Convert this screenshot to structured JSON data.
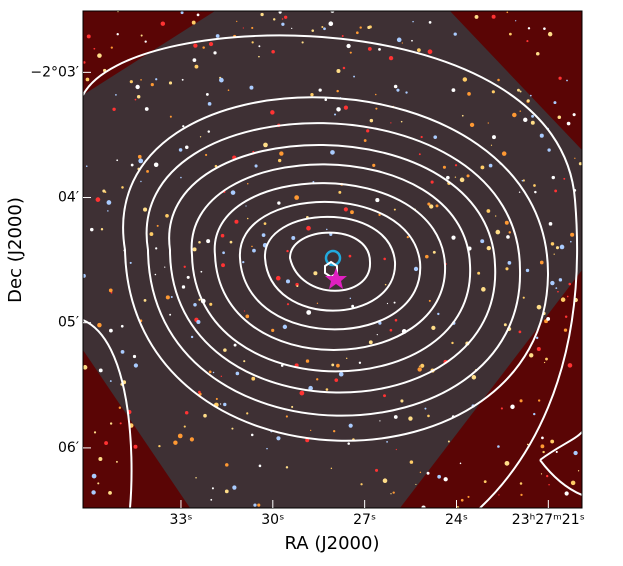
{
  "chart_data": {
    "type": "image",
    "xlabel": "RA (J2000)",
    "ylabel": "Dec (J2000)",
    "xlim": [
      36.2,
      19.9
    ],
    "xticks": [
      {
        "value": 33,
        "label": "33ˢ"
      },
      {
        "value": 30,
        "label": "30ˢ"
      },
      {
        "value": 27,
        "label": "27ˢ"
      },
      {
        "value": 24,
        "label": "24ˢ"
      },
      {
        "value": 21,
        "label": "23ʰ27ᵐ21ˢ"
      }
    ],
    "ylim": [
      -6.48,
      -2.51
    ],
    "yticks": [
      {
        "value": -3,
        "label": "−2°03′"
      },
      {
        "value": -4,
        "label": "04′"
      },
      {
        "value": -5,
        "label": "05′"
      },
      {
        "value": -6,
        "label": "06′"
      }
    ]
  }
}
